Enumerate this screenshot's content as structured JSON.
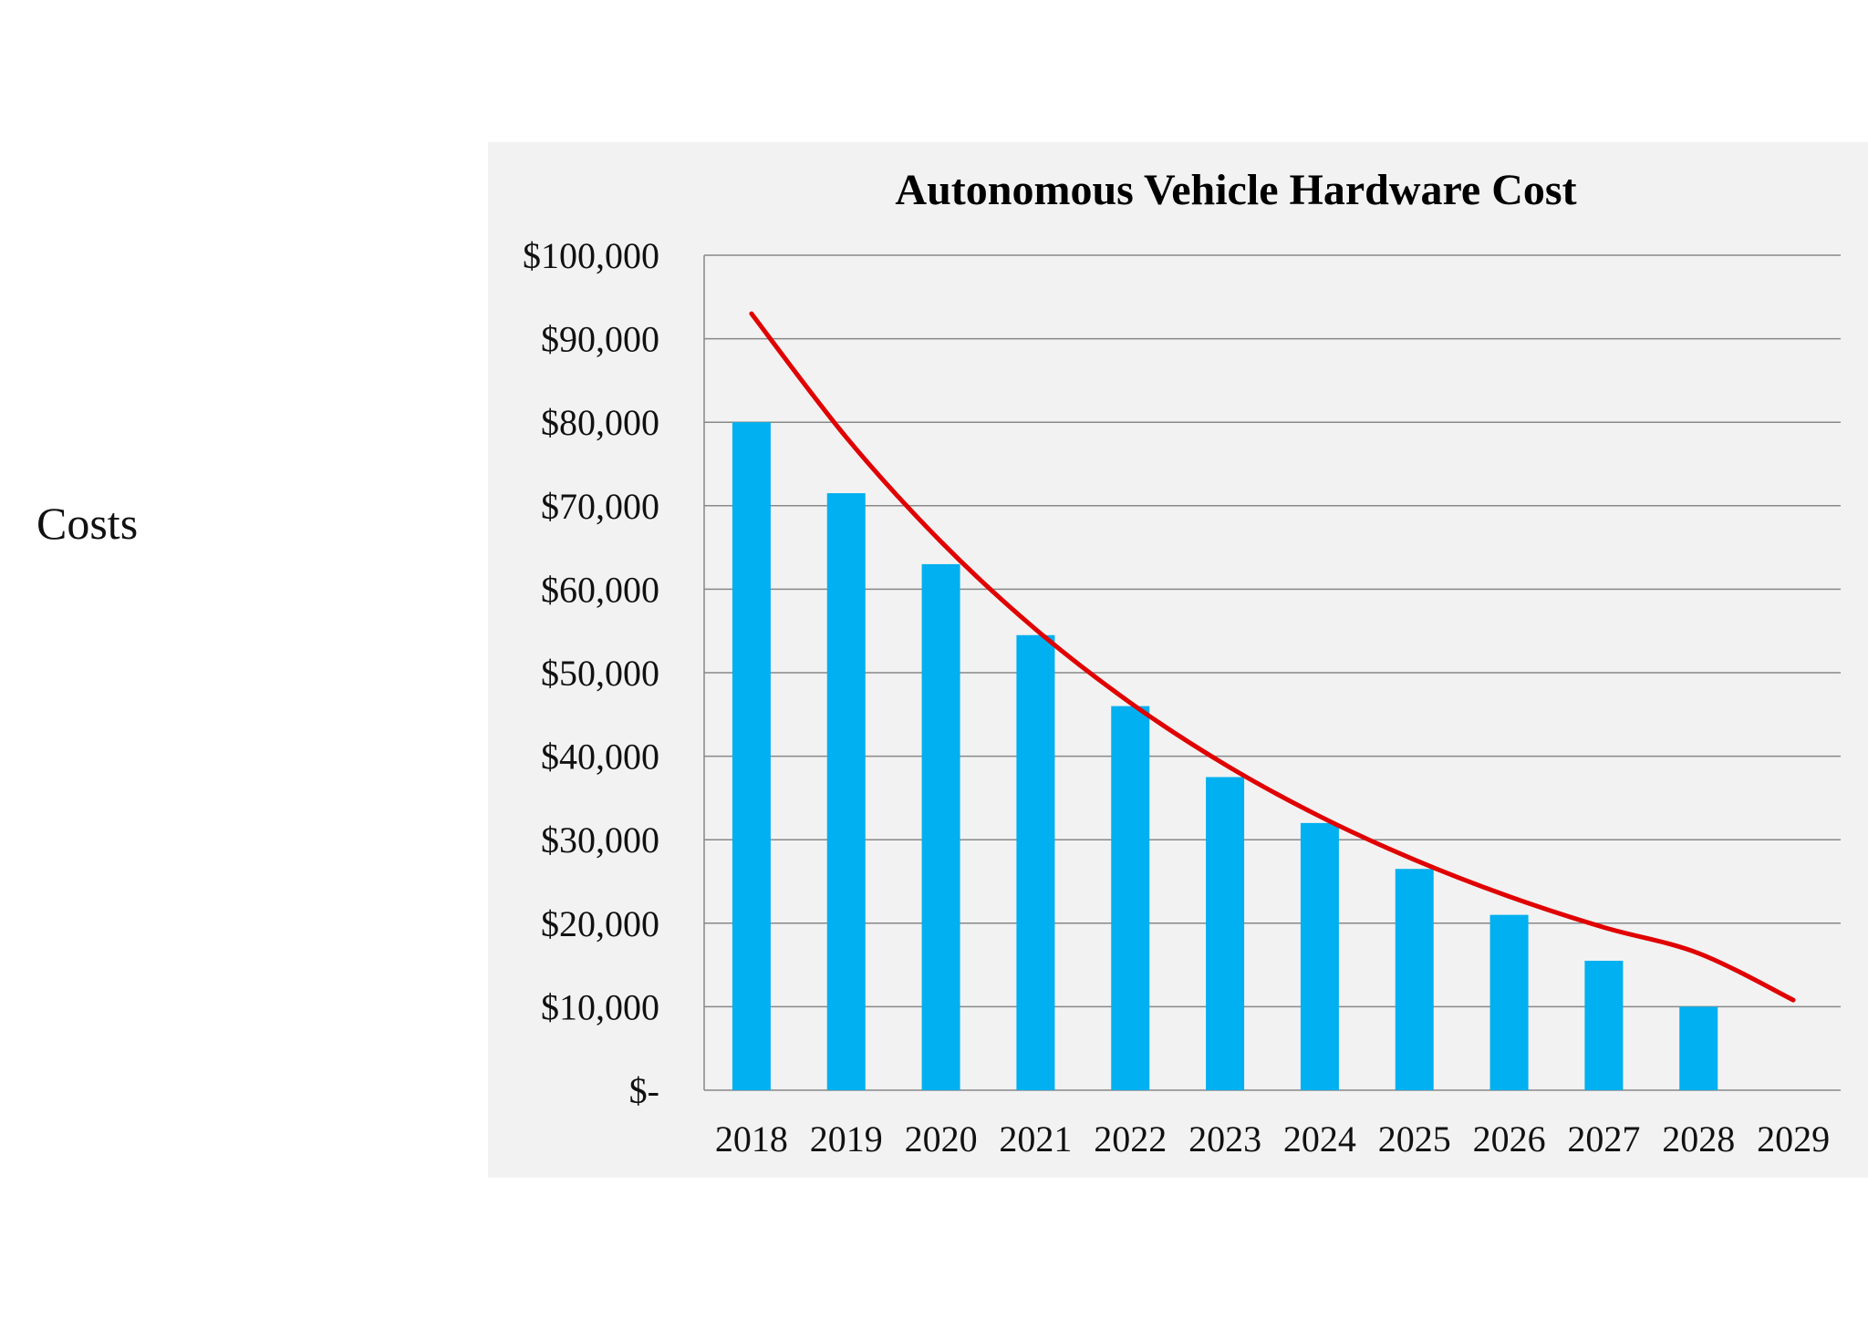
{
  "side_label": "Costs",
  "chart_data": {
    "type": "bar",
    "title": "Autonomous Vehicle Hardware Cost",
    "xlabel": "",
    "ylabel": "",
    "categories": [
      "2018",
      "2019",
      "2020",
      "2021",
      "2022",
      "2023",
      "2024",
      "2025",
      "2026",
      "2027",
      "2028",
      "2029"
    ],
    "series": [
      {
        "values": [
          80000,
          71500,
          63000,
          54500,
          46000,
          37500,
          32000,
          26500,
          21000,
          15500,
          10000,
          0
        ]
      }
    ],
    "trendline": {
      "type": "exponential",
      "values": [
        93000,
        78200,
        65700,
        55200,
        46400,
        39000,
        32800,
        27600,
        23200,
        19500,
        16400,
        10800
      ]
    },
    "ylim": [
      0,
      100000
    ],
    "yticks": [
      0,
      10000,
      20000,
      30000,
      40000,
      50000,
      60000,
      70000,
      80000,
      90000,
      100000
    ],
    "ytick_labels": [
      "$-",
      "$10,000",
      "$20,000",
      "$30,000",
      "$40,000",
      "$50,000",
      "$60,000",
      "$70,000",
      "$80,000",
      "$90,000",
      "$100,000"
    ],
    "grid": true,
    "legend": "none",
    "colors": {
      "bars": "#00b0f0",
      "trendline": "#e00000",
      "grid": "#888888",
      "panel": "#f2f2f2"
    }
  }
}
